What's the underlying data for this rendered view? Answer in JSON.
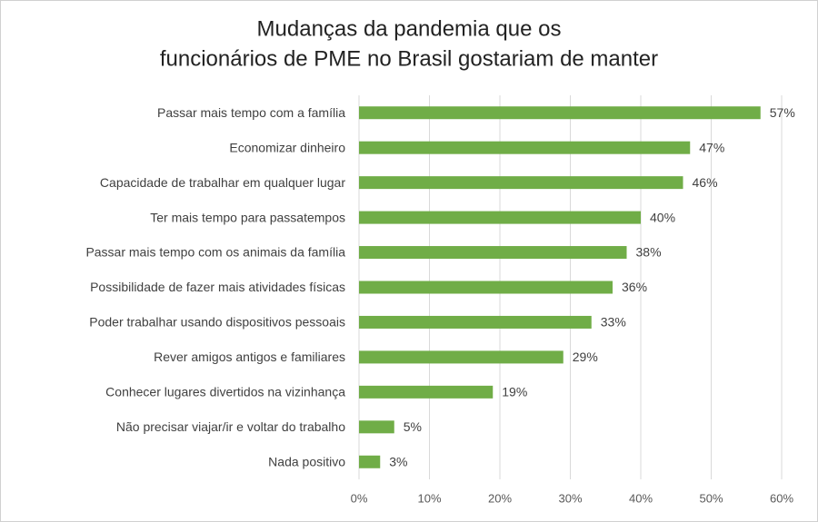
{
  "chart_data": {
    "type": "barh",
    "title": [
      "Mudanças da pandemia que os",
      "funcionários de PME no Brasil gostariam de manter"
    ],
    "categories": [
      "Passar mais tempo com a família",
      "Economizar dinheiro",
      "Capacidade de trabalhar em qualquer lugar",
      "Ter mais tempo para passatempos",
      "Passar mais tempo com os animais da família",
      "Possibilidade de fazer mais atividades físicas",
      "Poder trabalhar usando dispositivos pessoais",
      "Rever amigos antigos e familiares",
      "Conhecer lugares divertidos na vizinhança",
      "Não precisar viajar/ir e voltar do trabalho",
      "Nada positivo"
    ],
    "values": [
      57,
      47,
      46,
      40,
      38,
      36,
      33,
      29,
      19,
      5,
      3
    ],
    "value_labels": [
      "57%",
      "47%",
      "46%",
      "40%",
      "38%",
      "36%",
      "33%",
      "29%",
      "19%",
      "5%",
      "3%"
    ],
    "color": "#70ad47",
    "xlim": [
      0,
      60
    ],
    "xticks": [
      {
        "value": 0,
        "label": "0%"
      },
      {
        "value": 10,
        "label": "10%"
      },
      {
        "value": 20,
        "label": "20%"
      },
      {
        "value": 30,
        "label": "30%"
      },
      {
        "value": 40,
        "label": "40%"
      },
      {
        "value": 50,
        "label": "50%"
      },
      {
        "value": 60,
        "label": "60%"
      }
    ],
    "grid": true
  }
}
